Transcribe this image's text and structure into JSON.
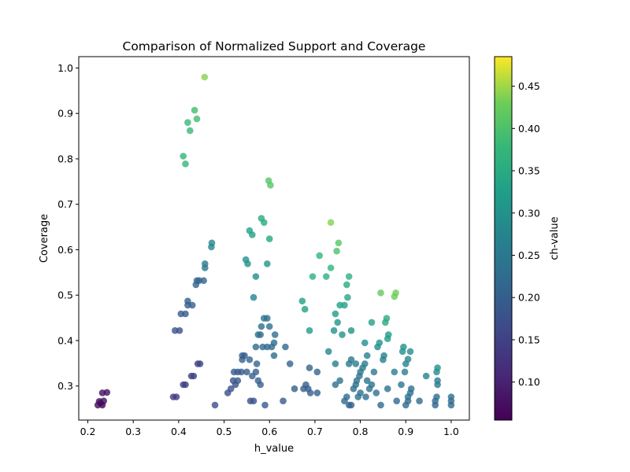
{
  "chart_data": {
    "type": "scatter",
    "title": "Comparison of Normalized Support and Coverage",
    "xlabel": "h_value",
    "ylabel": "Coverage",
    "colorbar_label": "ch-value",
    "xlim": [
      0.18,
      1.04
    ],
    "ylim": [
      0.225,
      1.025
    ],
    "clim": [
      0.055,
      0.485
    ],
    "xticks": [
      0.2,
      0.3,
      0.4,
      0.5,
      0.6,
      0.7,
      0.8,
      0.9,
      1.0
    ],
    "xtick_labels": [
      "0.2",
      "0.3",
      "0.4",
      "0.5",
      "0.6",
      "0.7",
      "0.8",
      "0.9",
      "1.0"
    ],
    "yticks": [
      0.3,
      0.4,
      0.5,
      0.6,
      0.7,
      0.8,
      0.9,
      1.0
    ],
    "ytick_labels": [
      "0.3",
      "0.4",
      "0.5",
      "0.6",
      "0.7",
      "0.8",
      "0.9",
      "1.0"
    ],
    "cticks": [
      0.1,
      0.15,
      0.2,
      0.25,
      0.3,
      0.35,
      0.4,
      0.45
    ],
    "ctick_labels": [
      "0.10",
      "0.15",
      "0.20",
      "0.25",
      "0.30",
      "0.35",
      "0.40",
      "0.45"
    ],
    "colormap": "viridis",
    "marker_alpha": 0.8,
    "grid": false,
    "points": [
      [
        0.222,
        0.258,
        0.07
      ],
      [
        0.225,
        0.266,
        0.07
      ],
      [
        0.228,
        0.262,
        0.07
      ],
      [
        0.232,
        0.258,
        0.07
      ],
      [
        0.235,
        0.267,
        0.07
      ],
      [
        0.232,
        0.285,
        0.075
      ],
      [
        0.242,
        0.286,
        0.075
      ],
      [
        0.388,
        0.276,
        0.14
      ],
      [
        0.395,
        0.276,
        0.14
      ],
      [
        0.41,
        0.303,
        0.15
      ],
      [
        0.415,
        0.303,
        0.15
      ],
      [
        0.428,
        0.322,
        0.15
      ],
      [
        0.433,
        0.322,
        0.15
      ],
      [
        0.442,
        0.349,
        0.155
      ],
      [
        0.447,
        0.349,
        0.155
      ],
      [
        0.392,
        0.422,
        0.18
      ],
      [
        0.402,
        0.422,
        0.18
      ],
      [
        0.405,
        0.459,
        0.19
      ],
      [
        0.415,
        0.459,
        0.19
      ],
      [
        0.42,
        0.478,
        0.2
      ],
      [
        0.43,
        0.478,
        0.2
      ],
      [
        0.42,
        0.487,
        0.2
      ],
      [
        0.438,
        0.523,
        0.21
      ],
      [
        0.44,
        0.532,
        0.21
      ],
      [
        0.445,
        0.532,
        0.21
      ],
      [
        0.455,
        0.532,
        0.21
      ],
      [
        0.458,
        0.56,
        0.25
      ],
      [
        0.458,
        0.569,
        0.25
      ],
      [
        0.472,
        0.606,
        0.28
      ],
      [
        0.473,
        0.615,
        0.28
      ],
      [
        0.41,
        0.806,
        0.37
      ],
      [
        0.415,
        0.789,
        0.37
      ],
      [
        0.42,
        0.88,
        0.38
      ],
      [
        0.425,
        0.862,
        0.38
      ],
      [
        0.435,
        0.907,
        0.39
      ],
      [
        0.44,
        0.888,
        0.39
      ],
      [
        0.457,
        0.98,
        0.44
      ],
      [
        0.48,
        0.258,
        0.17
      ],
      [
        0.508,
        0.285,
        0.17
      ],
      [
        0.515,
        0.294,
        0.18
      ],
      [
        0.52,
        0.312,
        0.18
      ],
      [
        0.525,
        0.303,
        0.18
      ],
      [
        0.522,
        0.331,
        0.19
      ],
      [
        0.53,
        0.331,
        0.19
      ],
      [
        0.538,
        0.331,
        0.19
      ],
      [
        0.53,
        0.312,
        0.19
      ],
      [
        0.54,
        0.358,
        0.2
      ],
      [
        0.545,
        0.367,
        0.2
      ],
      [
        0.54,
        0.367,
        0.2
      ],
      [
        0.55,
        0.331,
        0.2
      ],
      [
        0.556,
        0.358,
        0.21
      ],
      [
        0.558,
        0.267,
        0.18
      ],
      [
        0.565,
        0.267,
        0.18
      ],
      [
        0.562,
        0.322,
        0.2
      ],
      [
        0.57,
        0.331,
        0.2
      ],
      [
        0.572,
        0.349,
        0.21
      ],
      [
        0.57,
        0.386,
        0.22
      ],
      [
        0.575,
        0.413,
        0.23
      ],
      [
        0.58,
        0.413,
        0.23
      ],
      [
        0.582,
        0.431,
        0.23
      ],
      [
        0.585,
        0.386,
        0.22
      ],
      [
        0.575,
        0.312,
        0.2
      ],
      [
        0.58,
        0.303,
        0.2
      ],
      [
        0.59,
        0.258,
        0.19
      ],
      [
        0.595,
        0.386,
        0.22
      ],
      [
        0.6,
        0.431,
        0.23
      ],
      [
        0.605,
        0.386,
        0.22
      ],
      [
        0.61,
        0.395,
        0.22
      ],
      [
        0.612,
        0.413,
        0.23
      ],
      [
        0.61,
        0.367,
        0.22
      ],
      [
        0.588,
        0.449,
        0.24
      ],
      [
        0.595,
        0.449,
        0.24
      ],
      [
        0.63,
        0.267,
        0.19
      ],
      [
        0.635,
        0.386,
        0.22
      ],
      [
        0.645,
        0.349,
        0.21
      ],
      [
        0.655,
        0.294,
        0.2
      ],
      [
        0.675,
        0.294,
        0.2
      ],
      [
        0.68,
        0.303,
        0.2
      ],
      [
        0.685,
        0.294,
        0.2
      ],
      [
        0.688,
        0.34,
        0.21
      ],
      [
        0.69,
        0.285,
        0.2
      ],
      [
        0.705,
        0.285,
        0.2
      ],
      [
        0.705,
        0.331,
        0.21
      ],
      [
        0.548,
        0.578,
        0.3
      ],
      [
        0.552,
        0.569,
        0.3
      ],
      [
        0.57,
        0.541,
        0.29
      ],
      [
        0.565,
        0.495,
        0.27
      ],
      [
        0.595,
        0.569,
        0.31
      ],
      [
        0.556,
        0.642,
        0.33
      ],
      [
        0.562,
        0.633,
        0.33
      ],
      [
        0.582,
        0.669,
        0.35
      ],
      [
        0.588,
        0.66,
        0.35
      ],
      [
        0.6,
        0.624,
        0.34
      ],
      [
        0.598,
        0.752,
        0.41
      ],
      [
        0.602,
        0.742,
        0.41
      ],
      [
        0.672,
        0.487,
        0.33
      ],
      [
        0.678,
        0.469,
        0.33
      ],
      [
        0.688,
        0.422,
        0.32
      ],
      [
        0.695,
        0.541,
        0.36
      ],
      [
        0.71,
        0.587,
        0.37
      ],
      [
        0.73,
        0.376,
        0.28
      ],
      [
        0.725,
        0.541,
        0.36
      ],
      [
        0.735,
        0.56,
        0.37
      ],
      [
        0.735,
        0.66,
        0.44
      ],
      [
        0.742,
        0.422,
        0.3
      ],
      [
        0.745,
        0.349,
        0.26
      ],
      [
        0.745,
        0.459,
        0.32
      ],
      [
        0.748,
        0.597,
        0.4
      ],
      [
        0.752,
        0.615,
        0.41
      ],
      [
        0.75,
        0.44,
        0.31
      ],
      [
        0.755,
        0.478,
        0.33
      ],
      [
        0.76,
        0.413,
        0.3
      ],
      [
        0.765,
        0.478,
        0.33
      ],
      [
        0.77,
        0.523,
        0.35
      ],
      [
        0.772,
        0.495,
        0.34
      ],
      [
        0.775,
        0.541,
        0.36
      ],
      [
        0.745,
        0.303,
        0.23
      ],
      [
        0.755,
        0.312,
        0.24
      ],
      [
        0.765,
        0.267,
        0.22
      ],
      [
        0.77,
        0.276,
        0.22
      ],
      [
        0.775,
        0.258,
        0.21
      ],
      [
        0.78,
        0.258,
        0.21
      ],
      [
        0.775,
        0.349,
        0.25
      ],
      [
        0.78,
        0.358,
        0.25
      ],
      [
        0.785,
        0.294,
        0.23
      ],
      [
        0.79,
        0.303,
        0.23
      ],
      [
        0.795,
        0.276,
        0.23
      ],
      [
        0.792,
        0.312,
        0.24
      ],
      [
        0.798,
        0.322,
        0.24
      ],
      [
        0.8,
        0.331,
        0.25
      ],
      [
        0.805,
        0.34,
        0.25
      ],
      [
        0.81,
        0.349,
        0.26
      ],
      [
        0.8,
        0.285,
        0.23
      ],
      [
        0.812,
        0.276,
        0.23
      ],
      [
        0.815,
        0.312,
        0.24
      ],
      [
        0.82,
        0.294,
        0.23
      ],
      [
        0.825,
        0.303,
        0.24
      ],
      [
        0.78,
        0.422,
        0.3
      ],
      [
        0.79,
        0.349,
        0.26
      ],
      [
        0.81,
        0.395,
        0.29
      ],
      [
        0.815,
        0.367,
        0.27
      ],
      [
        0.825,
        0.44,
        0.33
      ],
      [
        0.83,
        0.331,
        0.25
      ],
      [
        0.835,
        0.285,
        0.23
      ],
      [
        0.838,
        0.386,
        0.29
      ],
      [
        0.842,
        0.395,
        0.3
      ],
      [
        0.845,
        0.258,
        0.22
      ],
      [
        0.85,
        0.358,
        0.26
      ],
      [
        0.852,
        0.367,
        0.27
      ],
      [
        0.845,
        0.505,
        0.42
      ],
      [
        0.855,
        0.44,
        0.34
      ],
      [
        0.858,
        0.449,
        0.35
      ],
      [
        0.86,
        0.404,
        0.32
      ],
      [
        0.862,
        0.413,
        0.32
      ],
      [
        0.86,
        0.294,
        0.23
      ],
      [
        0.875,
        0.331,
        0.26
      ],
      [
        0.875,
        0.497,
        0.43
      ],
      [
        0.878,
        0.505,
        0.43
      ],
      [
        0.88,
        0.267,
        0.22
      ],
      [
        0.89,
        0.303,
        0.24
      ],
      [
        0.893,
        0.376,
        0.3
      ],
      [
        0.895,
        0.386,
        0.3
      ],
      [
        0.898,
        0.331,
        0.26
      ],
      [
        0.9,
        0.349,
        0.27
      ],
      [
        0.9,
        0.258,
        0.22
      ],
      [
        0.905,
        0.359,
        0.28
      ],
      [
        0.91,
        0.376,
        0.29
      ],
      [
        0.905,
        0.267,
        0.22
      ],
      [
        0.905,
        0.276,
        0.23
      ],
      [
        0.91,
        0.285,
        0.23
      ],
      [
        0.912,
        0.294,
        0.24
      ],
      [
        0.93,
        0.267,
        0.22
      ],
      [
        0.945,
        0.322,
        0.27
      ],
      [
        0.965,
        0.258,
        0.21
      ],
      [
        0.965,
        0.267,
        0.22
      ],
      [
        0.968,
        0.276,
        0.23
      ],
      [
        0.97,
        0.303,
        0.25
      ],
      [
        0.97,
        0.312,
        0.26
      ],
      [
        0.968,
        0.331,
        0.29
      ],
      [
        0.97,
        0.34,
        0.3
      ],
      [
        1.0,
        0.258,
        0.22
      ],
      [
        1.0,
        0.267,
        0.22
      ],
      [
        1.0,
        0.276,
        0.23
      ]
    ]
  }
}
